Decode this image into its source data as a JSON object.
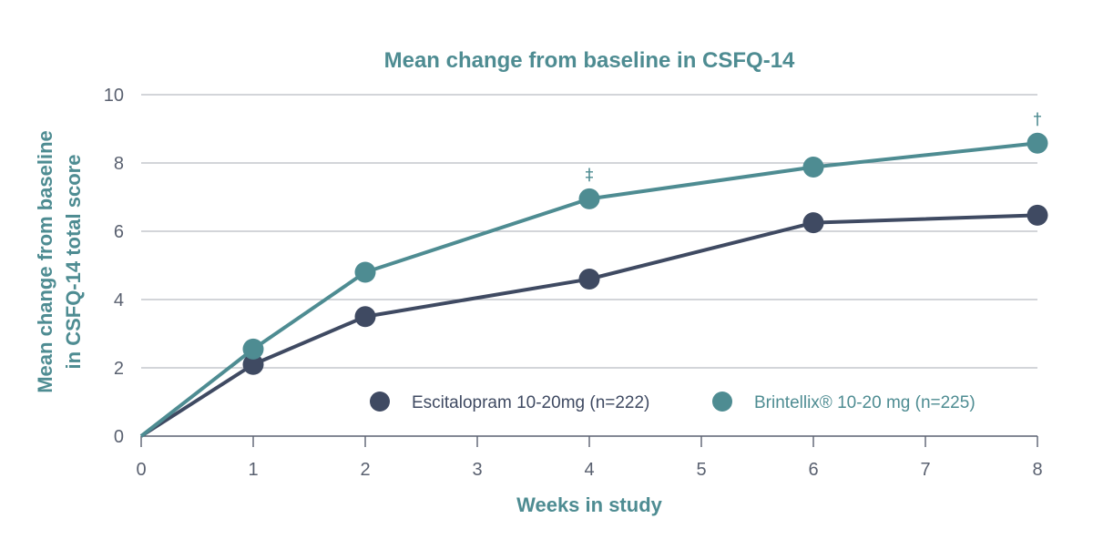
{
  "chart_data": {
    "type": "line",
    "title": "Mean change from baseline in CSFQ-14",
    "xlabel": "Weeks in study",
    "ylabel_lines": [
      "Mean change from baseline",
      "in CSFQ-14 total score"
    ],
    "xlim": [
      0,
      8
    ],
    "ylim": [
      0,
      10
    ],
    "x_ticks": [
      "0",
      "1",
      "2",
      "3",
      "4",
      "5",
      "6",
      "7",
      "8"
    ],
    "y_ticks": [
      "0",
      "2",
      "4",
      "6",
      "8",
      "10"
    ],
    "grid": true,
    "legend_position": "bottom-right",
    "series": [
      {
        "name": "Escitalopram 10-20mg  (n=222)",
        "color": "#3f4a62",
        "x": [
          0,
          1,
          2,
          4,
          6,
          8
        ],
        "y": [
          0,
          2.1,
          3.5,
          4.6,
          6.25,
          6.47
        ]
      },
      {
        "name": "Brintellix® 10-20 mg (n=225)",
        "color": "#4e8c92",
        "x": [
          0,
          1,
          2,
          4,
          6,
          8
        ],
        "y": [
          0,
          2.55,
          4.8,
          6.95,
          7.88,
          8.58
        ]
      }
    ],
    "annotations": [
      {
        "text": "‡",
        "series": 1,
        "x": 4
      },
      {
        "text": "†",
        "series": 1,
        "x": 8
      }
    ],
    "colors": {
      "title": "#4e8c92",
      "axis_title": "#4e8c92",
      "tick": "#5a6170",
      "grid": "#b9bcc2",
      "axis": "#5a6170"
    }
  }
}
